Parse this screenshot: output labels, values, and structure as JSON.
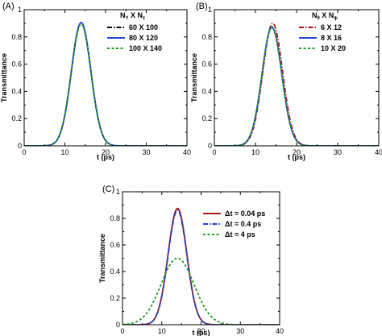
{
  "chart_data": [
    {
      "panel_label": "(A)",
      "type": "line",
      "xlabel": "t (ps)",
      "ylabel": "Transmittance",
      "xlim": [
        0,
        40
      ],
      "ylim": [
        0,
        1
      ],
      "xticks": [
        0,
        10,
        20,
        30,
        40
      ],
      "yticks": [
        0,
        0.2,
        0.4,
        0.6,
        0.8,
        1
      ],
      "legend_title": "N_Y X N_z",
      "legend_title_parts": {
        "a": "N",
        "a_sub": "Y",
        "mid": " X N",
        "b_sub": "z"
      },
      "legend_position": "top-right",
      "series": [
        {
          "name": "60 X 100",
          "color": "#000000",
          "style": "dashdot",
          "peak": 0.905,
          "center": 14.0,
          "sigma": 2.4
        },
        {
          "name": "80 X 120",
          "color": "#1f3fd6",
          "style": "solid",
          "peak": 0.905,
          "center": 14.0,
          "sigma": 2.4
        },
        {
          "name": "100 X 140",
          "color": "#1e9e1e",
          "style": "dotted",
          "peak": 0.895,
          "center": 14.0,
          "sigma": 2.4
        }
      ]
    },
    {
      "panel_label": "(B)",
      "type": "line",
      "xlabel": "t (ps)",
      "ylabel": "Transmittance",
      "xlim": [
        0,
        40
      ],
      "ylim": [
        0,
        1
      ],
      "xticks": [
        0,
        10,
        20,
        30,
        40
      ],
      "yticks": [
        0,
        0.2,
        0.4,
        0.6,
        0.8,
        1
      ],
      "legend_title": "N_θ X N_ψ",
      "legend_title_parts": {
        "a": "N",
        "a_sub": "θ",
        "mid": " X N",
        "b_sub": "ψ"
      },
      "legend_position": "top-right",
      "series": [
        {
          "name": "6 X 12",
          "color": "#b01818",
          "style": "dashdot",
          "peak": 0.9,
          "center": 14.2,
          "sigma": 2.4
        },
        {
          "name": "8 X 16",
          "color": "#1f3fd6",
          "style": "solid",
          "peak": 0.87,
          "center": 14.0,
          "sigma": 2.4
        },
        {
          "name": "10 X 20",
          "color": "#1e9e1e",
          "style": "dotted",
          "peak": 0.875,
          "center": 14.0,
          "sigma": 2.4
        }
      ]
    },
    {
      "panel_label": "(C)",
      "type": "line",
      "xlabel": "t (ps)",
      "ylabel": "Transmittance",
      "xlim": [
        0,
        40
      ],
      "ylim": [
        0,
        1
      ],
      "xticks": [
        0,
        10,
        20,
        30,
        40
      ],
      "yticks": [
        0,
        0.2,
        0.4,
        0.6,
        0.8,
        1
      ],
      "legend_position": "top-right",
      "series": [
        {
          "name": "Δt = 0.04 ps",
          "color": "#b01818",
          "style": "solid",
          "peak": 0.875,
          "center": 14.0,
          "sigma": 2.4
        },
        {
          "name": "Δt = 0.4 ps",
          "color": "#1f3fd6",
          "style": "dashdot",
          "peak": 0.86,
          "center": 14.0,
          "sigma": 2.4
        },
        {
          "name": "Δt = 4 ps",
          "color": "#1e9e1e",
          "style": "dotted",
          "peak": 0.5,
          "center": 14.0,
          "sigma": 4.2
        }
      ]
    }
  ]
}
